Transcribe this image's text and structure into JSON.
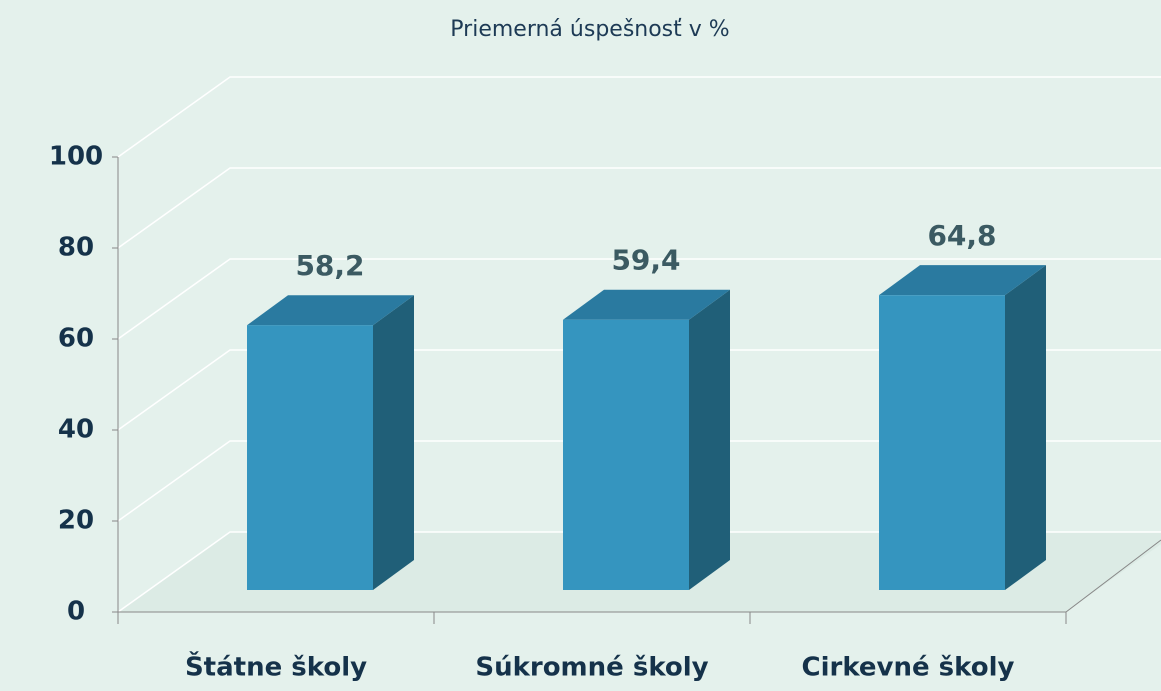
{
  "chart_data": {
    "type": "bar3d",
    "title": "Priemerná úspešnosť v %",
    "categories": [
      "Štátne školy",
      "Súkromné školy",
      "Cirkevné školy"
    ],
    "values": [
      58.2,
      59.4,
      64.8
    ],
    "value_labels": [
      "58,2",
      "59,4",
      "64,8"
    ],
    "colors": {
      "front": "#3595bf",
      "top": "#2a7aa0",
      "side": "#205f78"
    },
    "ylim": [
      0,
      100
    ],
    "yticks": [
      0,
      20,
      40,
      60,
      80,
      100
    ],
    "grid": true
  }
}
